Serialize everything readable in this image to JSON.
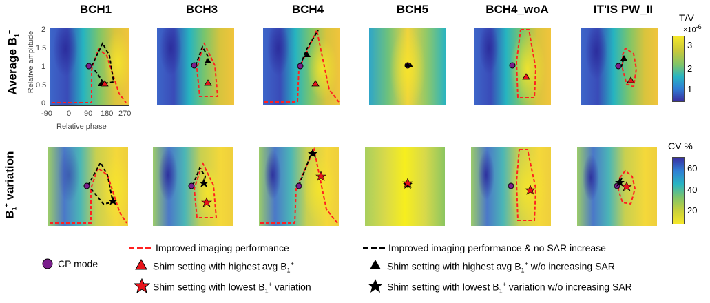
{
  "columns": [
    "BCH1",
    "BCH3",
    "BCH4",
    "BCH5",
    "BCH4_woA",
    "IT'IS PW_II"
  ],
  "rows": {
    "row1_main": "Average B",
    "row1_sub": "1",
    "row1_sup": "+",
    "row2_main": "variation",
    "row2_b": "B",
    "row2_sub": "1",
    "row2_sup": "+"
  },
  "axes": {
    "ylabel": "Relative amplitude",
    "xlabel": "Relative phase",
    "yticks": [
      "2",
      "1.5",
      "1",
      "0.5",
      "0"
    ],
    "xticks": [
      "-90",
      "0",
      "90",
      "180",
      "270"
    ]
  },
  "colorbar1": {
    "title": "T/V",
    "exponent": "×10",
    "exponent_sup": "-6",
    "ticks": [
      "3",
      "2",
      "1"
    ]
  },
  "colorbar2": {
    "title": "CV %",
    "ticks": [
      "60",
      "40",
      "20"
    ]
  },
  "legend": {
    "red_dashed": "Improved imaging performance",
    "black_dashed": "Improved imaging performance & no SAR increase",
    "cp_mode": "CP mode",
    "red_triangle_a": "Shim setting with highest avg B",
    "red_triangle_sub": "1",
    "red_triangle_sup": "+",
    "black_triangle_a": "Shim setting with highest avg B",
    "black_triangle_sub": "1",
    "black_triangle_sup": "+",
    "black_triangle_b": " w/o increasing SAR",
    "red_star_a": "Shim setting with lowest B",
    "red_star_sub": "1",
    "red_star_sup": "+",
    "red_star_b": " variation",
    "black_star_a": "Shim setting with lowest B",
    "black_star_sub": "1",
    "black_star_sup": "+",
    "black_star_b": " variation w/o increasing SAR"
  },
  "colors": {
    "red": "#e8141b",
    "purple": "#7a1e8c",
    "dashed_red": "#ff2020",
    "black": "#000000"
  }
}
